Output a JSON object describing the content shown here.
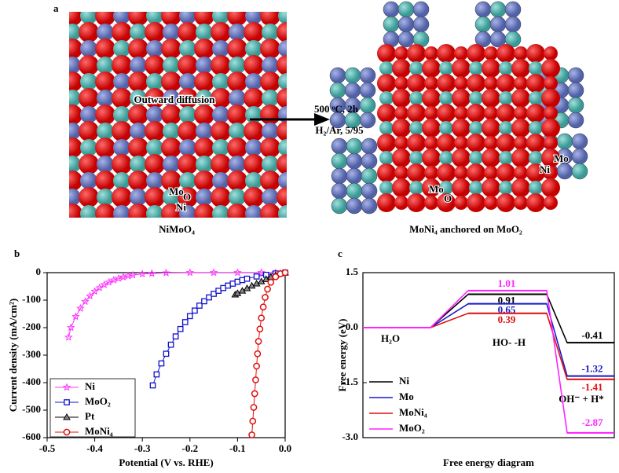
{
  "panel_a": {
    "panel_label": "a",
    "left_caption": "NiMoO₄",
    "right_caption": "MoNi₄ anchored on MoO₂",
    "condition_top": "500 ᵒC, 2h",
    "condition_bottom": "H₂/Ar, 5/95",
    "diffusion_label": "Outward diffusion",
    "left_atoms": [
      "Mo",
      "O",
      "Ni"
    ],
    "right_atoms_side": [
      "Mo",
      "Ni"
    ],
    "right_atoms_center": [
      "Mo",
      "O"
    ]
  },
  "chart_data": [
    {
      "type": "line",
      "panel_label": "b",
      "x_label": "Potential (V vs. RHE)",
      "y_label": "Current density (mA/cm²)",
      "xlim": [
        -0.5,
        0.0
      ],
      "xticks": [
        -0.5,
        -0.4,
        -0.3,
        -0.2,
        -0.1,
        {
          "value": 0,
          "label": "0.0"
        }
      ],
      "ylim": [
        -600,
        0
      ],
      "yticks": [
        0,
        -100,
        -200,
        -300,
        -400,
        -500,
        -600
      ],
      "legend": "lower left",
      "series": [
        {
          "name": "Ni",
          "color": "#ff33ff",
          "marker": "star",
          "x": [
            -0.455,
            -0.45,
            -0.44,
            -0.43,
            -0.42,
            -0.41,
            -0.4,
            -0.39,
            -0.38,
            -0.37,
            -0.36,
            -0.35,
            -0.34,
            -0.33,
            -0.32,
            -0.3,
            -0.28,
            -0.25,
            -0.2,
            -0.15,
            -0.1,
            -0.05,
            -0.02
          ],
          "values": [
            -235,
            -200,
            -160,
            -130,
            -105,
            -85,
            -68,
            -55,
            -44,
            -35,
            -27,
            -21,
            -16,
            -12,
            -9,
            -5,
            -3,
            -1,
            0,
            0,
            0,
            0,
            0
          ]
        },
        {
          "name": "MoO₂",
          "color": "#1111cc",
          "marker": "square",
          "x": [
            -0.278,
            -0.27,
            -0.26,
            -0.25,
            -0.24,
            -0.23,
            -0.22,
            -0.21,
            -0.2,
            -0.19,
            -0.18,
            -0.17,
            -0.16,
            -0.15,
            -0.14,
            -0.13,
            -0.12,
            -0.11,
            -0.1,
            -0.09,
            -0.08,
            -0.06,
            -0.04,
            -0.02,
            0
          ],
          "values": [
            -410,
            -370,
            -330,
            -295,
            -262,
            -232,
            -205,
            -180,
            -158,
            -138,
            -120,
            -104,
            -90,
            -77,
            -66,
            -56,
            -47,
            -40,
            -33,
            -27,
            -22,
            -14,
            -8,
            -3,
            0
          ]
        },
        {
          "name": "Pt",
          "color": "#000000",
          "marker": "triangle",
          "x": [
            -0.105,
            -0.1,
            -0.09,
            -0.08,
            -0.07,
            -0.06,
            -0.05,
            -0.04,
            -0.03,
            -0.02,
            -0.01,
            0
          ],
          "values": [
            -80,
            -75,
            -66,
            -57,
            -48,
            -40,
            -32,
            -24,
            -16,
            -9,
            -3,
            0
          ]
        },
        {
          "name": "MoNi₄",
          "color": "#e01010",
          "marker": "circle",
          "x": [
            -0.07,
            -0.068,
            -0.066,
            -0.064,
            -0.062,
            -0.06,
            -0.058,
            -0.056,
            -0.053,
            -0.05,
            -0.046,
            -0.042,
            -0.037,
            -0.03,
            -0.02,
            -0.01,
            0
          ],
          "values": [
            -590,
            -540,
            -490,
            -440,
            -390,
            -340,
            -295,
            -250,
            -205,
            -165,
            -125,
            -90,
            -60,
            -35,
            -15,
            -4,
            0
          ]
        }
      ]
    },
    {
      "type": "energy",
      "panel_label": "c",
      "x_label": "Free energy diagram",
      "y_label": "Free energy (eV)",
      "categories": [
        "H₂O",
        "HO- -H",
        "OH⁻ + H*"
      ],
      "ylim": [
        -3.0,
        1.5
      ],
      "yticks": [
        1.5,
        {
          "value": 0,
          "label": "0.0"
        },
        -1.5,
        {
          "value": -3,
          "label": "-3.0"
        }
      ],
      "legend": "lower left",
      "series": [
        {
          "name": "Ni",
          "color": "#000000",
          "values": [
            0,
            0.91,
            -0.41
          ]
        },
        {
          "name": "Mo",
          "color": "#1a1acc",
          "values": [
            0,
            0.65,
            -1.32
          ]
        },
        {
          "name": "MoNi₄",
          "color": "#dd1111",
          "values": [
            0,
            0.39,
            -1.41
          ]
        },
        {
          "name": "MoO₂",
          "color": "#ff22ff",
          "values": [
            0,
            1.01,
            -2.87
          ]
        }
      ]
    }
  ]
}
